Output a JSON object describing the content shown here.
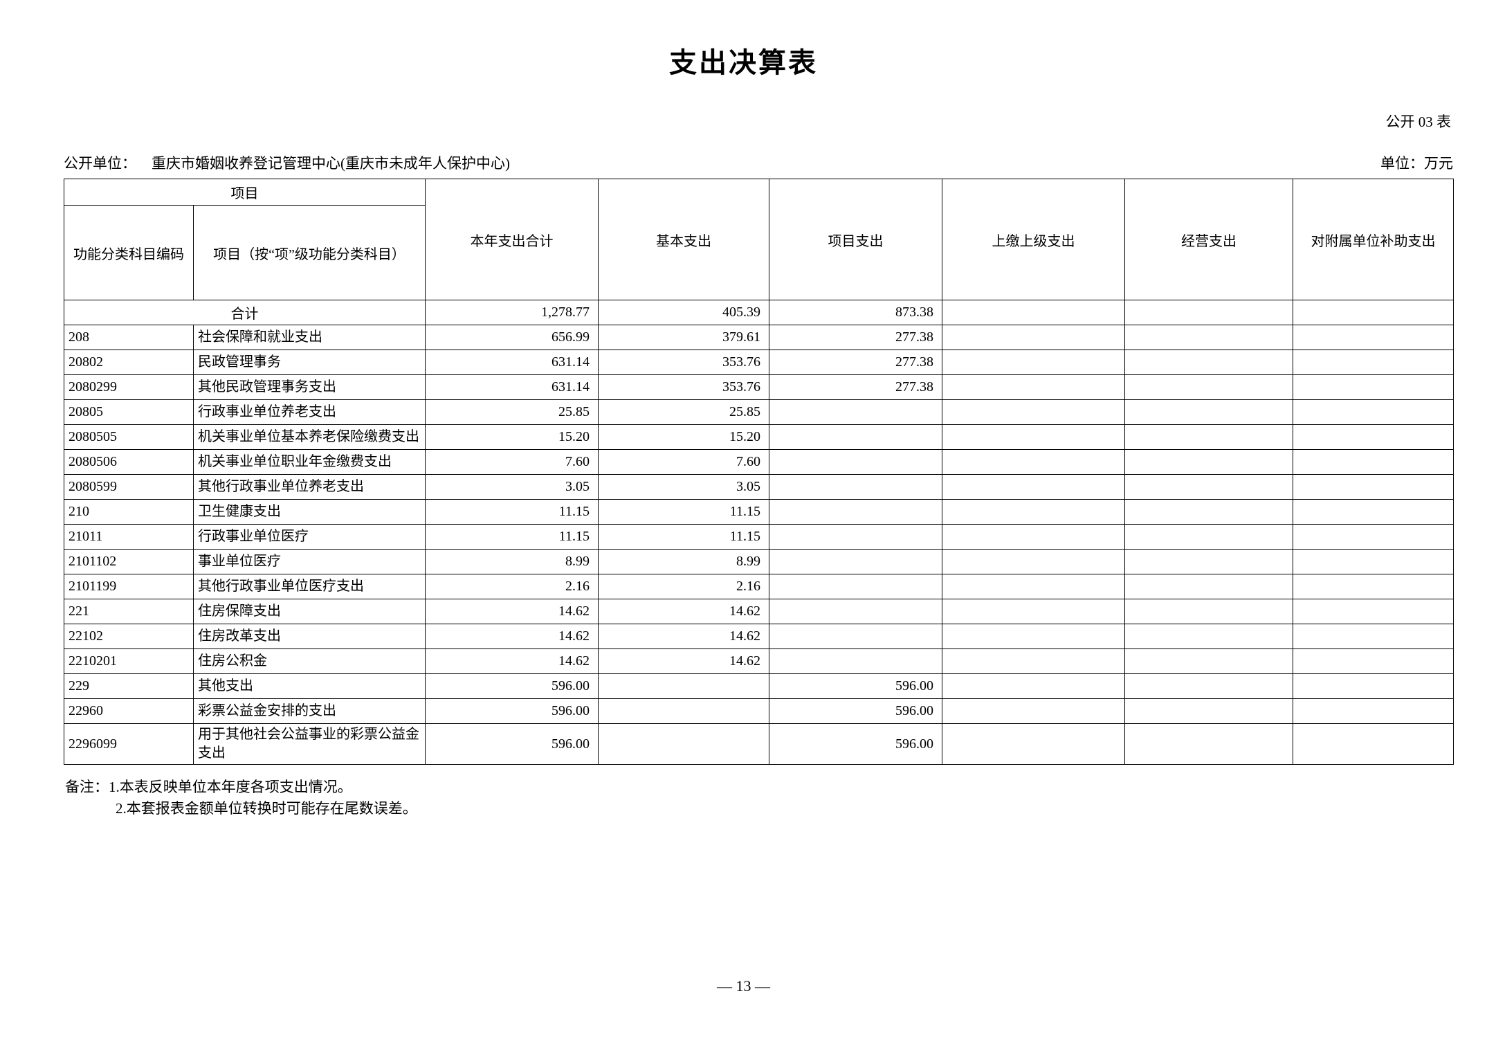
{
  "document": {
    "title": "支出决算表",
    "form_code": "公开 03 表",
    "publisher_label": "公开单位：",
    "publisher_name": "重庆市婚姻收养登记管理中心(重庆市未成年人保护中心)",
    "unit_note": "单位：万元",
    "page_number": "— 13 —"
  },
  "table": {
    "header": {
      "item_group": "项目",
      "code_col": "功能分类科目编码",
      "item_col": "项目（按“项”级功能分类科目）",
      "total_col": "本年支出合计",
      "basic_col": "基本支出",
      "project_col": "项目支出",
      "upper_col": "上缴上级支出",
      "operating_col": "经营支出",
      "subsidy_col": "对附属单位补助支出"
    },
    "total_row": {
      "merged_label": "合计",
      "total": "1,278.77",
      "basic": "405.39",
      "project": "873.38",
      "upper": "",
      "operating": "",
      "subsidy": ""
    },
    "rows": [
      {
        "code": "208",
        "item": "社会保障和就业支出",
        "total": "656.99",
        "basic": "379.61",
        "project": "277.38",
        "upper": "",
        "operating": "",
        "subsidy": ""
      },
      {
        "code": "20802",
        "item": "民政管理事务",
        "total": "631.14",
        "basic": "353.76",
        "project": "277.38",
        "upper": "",
        "operating": "",
        "subsidy": ""
      },
      {
        "code": "2080299",
        "item": "其他民政管理事务支出",
        "total": "631.14",
        "basic": "353.76",
        "project": "277.38",
        "upper": "",
        "operating": "",
        "subsidy": ""
      },
      {
        "code": "20805",
        "item": "行政事业单位养老支出",
        "total": "25.85",
        "basic": "25.85",
        "project": "",
        "upper": "",
        "operating": "",
        "subsidy": ""
      },
      {
        "code": "2080505",
        "item": "机关事业单位基本养老保险缴费支出",
        "total": "15.20",
        "basic": "15.20",
        "project": "",
        "upper": "",
        "operating": "",
        "subsidy": ""
      },
      {
        "code": "2080506",
        "item": "机关事业单位职业年金缴费支出",
        "total": "7.60",
        "basic": "7.60",
        "project": "",
        "upper": "",
        "operating": "",
        "subsidy": ""
      },
      {
        "code": "2080599",
        "item": "其他行政事业单位养老支出",
        "total": "3.05",
        "basic": "3.05",
        "project": "",
        "upper": "",
        "operating": "",
        "subsidy": ""
      },
      {
        "code": "210",
        "item": "卫生健康支出",
        "total": "11.15",
        "basic": "11.15",
        "project": "",
        "upper": "",
        "operating": "",
        "subsidy": ""
      },
      {
        "code": "21011",
        "item": "行政事业单位医疗",
        "total": "11.15",
        "basic": "11.15",
        "project": "",
        "upper": "",
        "operating": "",
        "subsidy": ""
      },
      {
        "code": "2101102",
        "item": "事业单位医疗",
        "total": "8.99",
        "basic": "8.99",
        "project": "",
        "upper": "",
        "operating": "",
        "subsidy": ""
      },
      {
        "code": "2101199",
        "item": "其他行政事业单位医疗支出",
        "total": "2.16",
        "basic": "2.16",
        "project": "",
        "upper": "",
        "operating": "",
        "subsidy": ""
      },
      {
        "code": "221",
        "item": "住房保障支出",
        "total": "14.62",
        "basic": "14.62",
        "project": "",
        "upper": "",
        "operating": "",
        "subsidy": ""
      },
      {
        "code": "22102",
        "item": "住房改革支出",
        "total": "14.62",
        "basic": "14.62",
        "project": "",
        "upper": "",
        "operating": "",
        "subsidy": ""
      },
      {
        "code": "2210201",
        "item": "住房公积金",
        "total": "14.62",
        "basic": "14.62",
        "project": "",
        "upper": "",
        "operating": "",
        "subsidy": ""
      },
      {
        "code": "229",
        "item": "其他支出",
        "total": "596.00",
        "basic": "",
        "project": "596.00",
        "upper": "",
        "operating": "",
        "subsidy": ""
      },
      {
        "code": "22960",
        "item": "彩票公益金安排的支出",
        "total": "596.00",
        "basic": "",
        "project": "596.00",
        "upper": "",
        "operating": "",
        "subsidy": ""
      },
      {
        "code": "2296099",
        "item": "用于其他社会公益事业的彩票公益金支出",
        "total": "596.00",
        "basic": "",
        "project": "596.00",
        "upper": "",
        "operating": "",
        "subsidy": ""
      }
    ]
  },
  "notes": {
    "label": "备注：",
    "line1": "1.本表反映单位本年度各项支出情况。",
    "line2": "2.本套报表金额单位转换时可能存在尾数误差。"
  }
}
